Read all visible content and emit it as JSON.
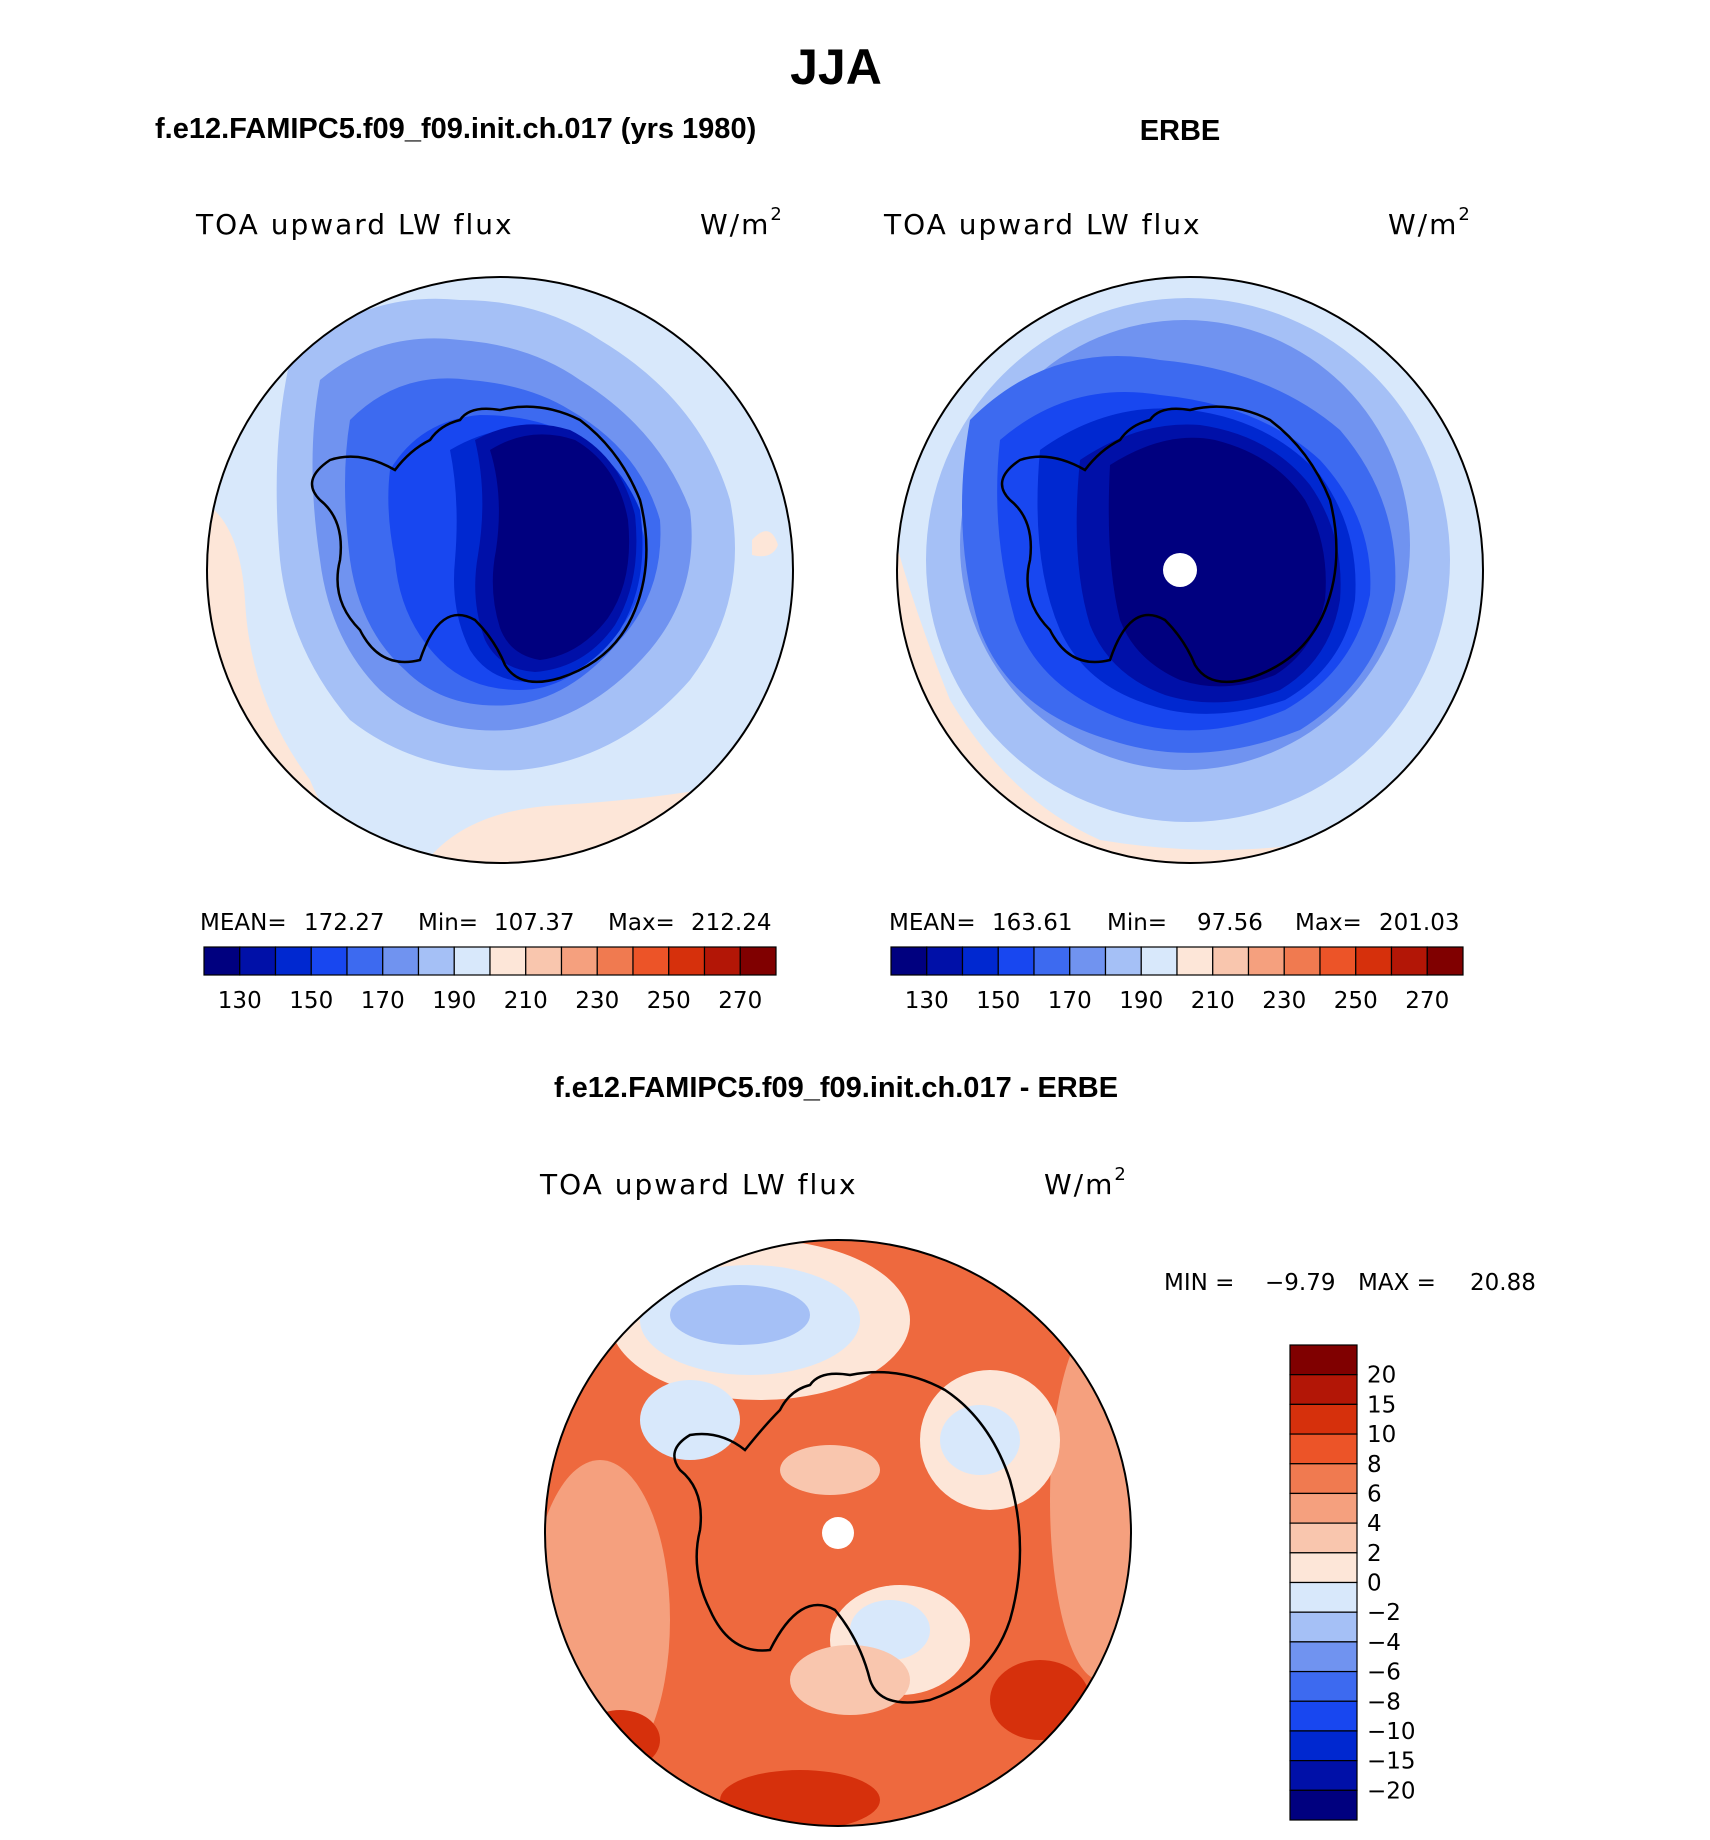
{
  "figure": {
    "title": "JJA"
  },
  "panels": [
    {
      "header": "f.e12.FAMIPC5.f09_f09.init.ch.017 (yrs 1980)",
      "variable": "TOA upward LW flux",
      "units": "W/m",
      "units_sup": "2",
      "stats": {
        "mean_label": "MEAN=",
        "mean": "172.27",
        "min_label": "Min=",
        "min": "107.37",
        "max_label": "Max=",
        "max": "212.24"
      }
    },
    {
      "header": "ERBE",
      "variable": "TOA upward LW flux",
      "units": "W/m",
      "units_sup": "2",
      "stats": {
        "mean_label": "MEAN=",
        "mean": "163.61",
        "min_label": "Min=",
        "min": "97.56",
        "max_label": "Max=",
        "max": "201.03"
      }
    }
  ],
  "abs_colorbar": {
    "colors": [
      "#00007f",
      "#0010a8",
      "#0028d0",
      "#1847f0",
      "#3d6af0",
      "#7093f0",
      "#a5c0f6",
      "#d8e8fb",
      "#fde6d8",
      "#f9c6ae",
      "#f5a07e",
      "#f07a50",
      "#ec5428",
      "#d6300c",
      "#b31606",
      "#800000"
    ],
    "labels": [
      "130",
      "150",
      "170",
      "190",
      "210",
      "230",
      "250",
      "270"
    ]
  },
  "diff_panel": {
    "header": "f.e12.FAMIPC5.f09_f09.init.ch.017 - ERBE",
    "variable": "TOA upward LW flux",
    "units": "W/m",
    "units_sup": "2",
    "min_label": "MIN =",
    "min": "−9.79",
    "max_label": "MAX =",
    "max": "20.88"
  },
  "diff_colorbar": {
    "colors": [
      "#800000",
      "#b31606",
      "#d6300c",
      "#ec5428",
      "#f07a50",
      "#f5a07e",
      "#f9c6ae",
      "#fde6d8",
      "#d8e8fb",
      "#a5c0f6",
      "#7093f0",
      "#3d6af0",
      "#1847f0",
      "#0028d0",
      "#0010a8",
      "#00007f"
    ],
    "labels": [
      "20",
      "15",
      "10",
      "8",
      "6",
      "4",
      "2",
      "0",
      "−2",
      "−4",
      "−6",
      "−8",
      "−10",
      "−15",
      "−20"
    ]
  }
}
